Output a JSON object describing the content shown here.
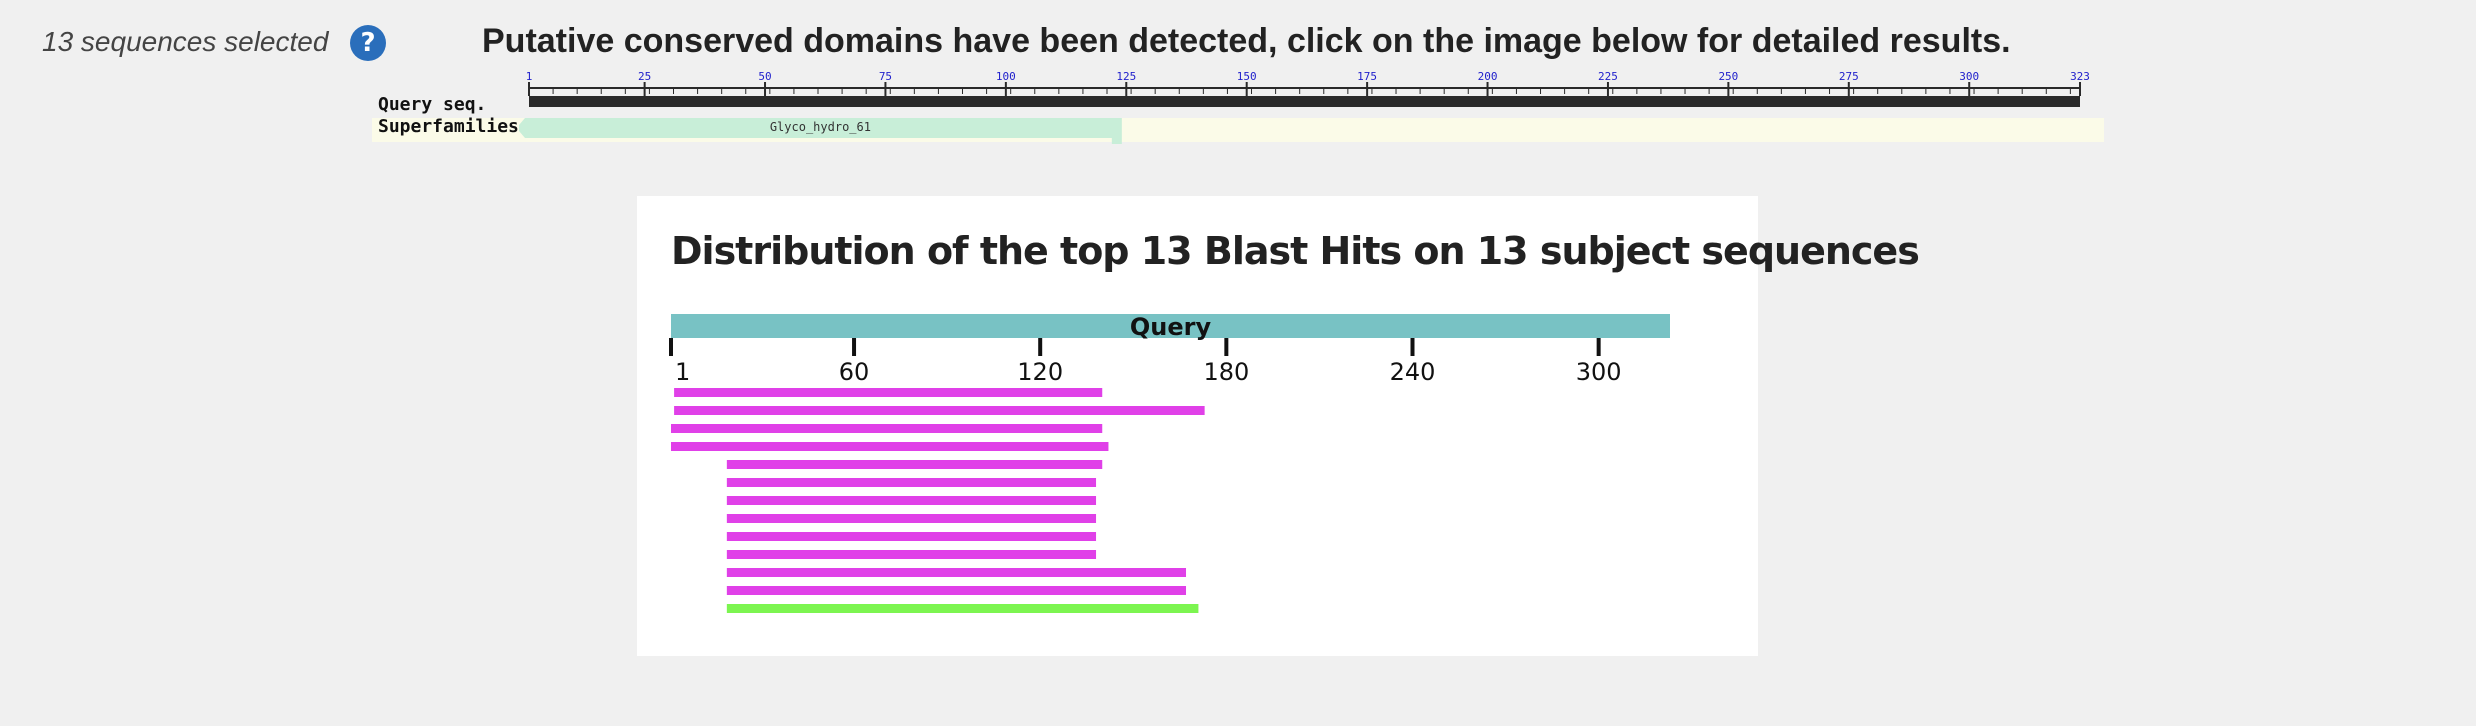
{
  "selection": {
    "count_text": "13 sequences selected",
    "help_icon": "question-circle-icon",
    "help_symbol": "?"
  },
  "cdd": {
    "heading": "Putative conserved domains have been detected, click on the image below for detailed results.",
    "query_label": "Query seq.",
    "superfamilies_label": "Superfamilies",
    "ticks": [
      1,
      25,
      50,
      75,
      100,
      125,
      150,
      175,
      200,
      225,
      250,
      275,
      300,
      323
    ],
    "sequence_length": 323,
    "domain": {
      "name": "Glyco_hydro_61",
      "start": 1,
      "end": 122
    },
    "colors": {
      "query_bar": "#2a2a2a",
      "tick_label": "#2222cc",
      "domain": "#c8eed8",
      "track_bg": "#fbfbe8"
    }
  },
  "blast": {
    "title": "Distribution of the top 13 Blast Hits on 13 subject sequences",
    "query_label": "Query",
    "query_length": 323,
    "ticks": [
      1,
      60,
      120,
      180,
      240,
      300
    ],
    "colors": {
      "query": "#78c2c4",
      "hit": "#e040e8",
      "best_hit": "#7cf550"
    },
    "hits": [
      {
        "start": 2,
        "end": 140,
        "color": "hit"
      },
      {
        "start": 2,
        "end": 173,
        "color": "hit"
      },
      {
        "start": 1,
        "end": 140,
        "color": "hit"
      },
      {
        "start": 1,
        "end": 142,
        "color": "hit"
      },
      {
        "start": 19,
        "end": 140,
        "color": "hit"
      },
      {
        "start": 19,
        "end": 138,
        "color": "hit"
      },
      {
        "start": 19,
        "end": 138,
        "color": "hit"
      },
      {
        "start": 19,
        "end": 138,
        "color": "hit"
      },
      {
        "start": 19,
        "end": 138,
        "color": "hit"
      },
      {
        "start": 19,
        "end": 138,
        "color": "hit"
      },
      {
        "start": 19,
        "end": 167,
        "color": "hit"
      },
      {
        "start": 19,
        "end": 167,
        "color": "hit"
      },
      {
        "start": 19,
        "end": 171,
        "color": "best_hit"
      }
    ]
  }
}
